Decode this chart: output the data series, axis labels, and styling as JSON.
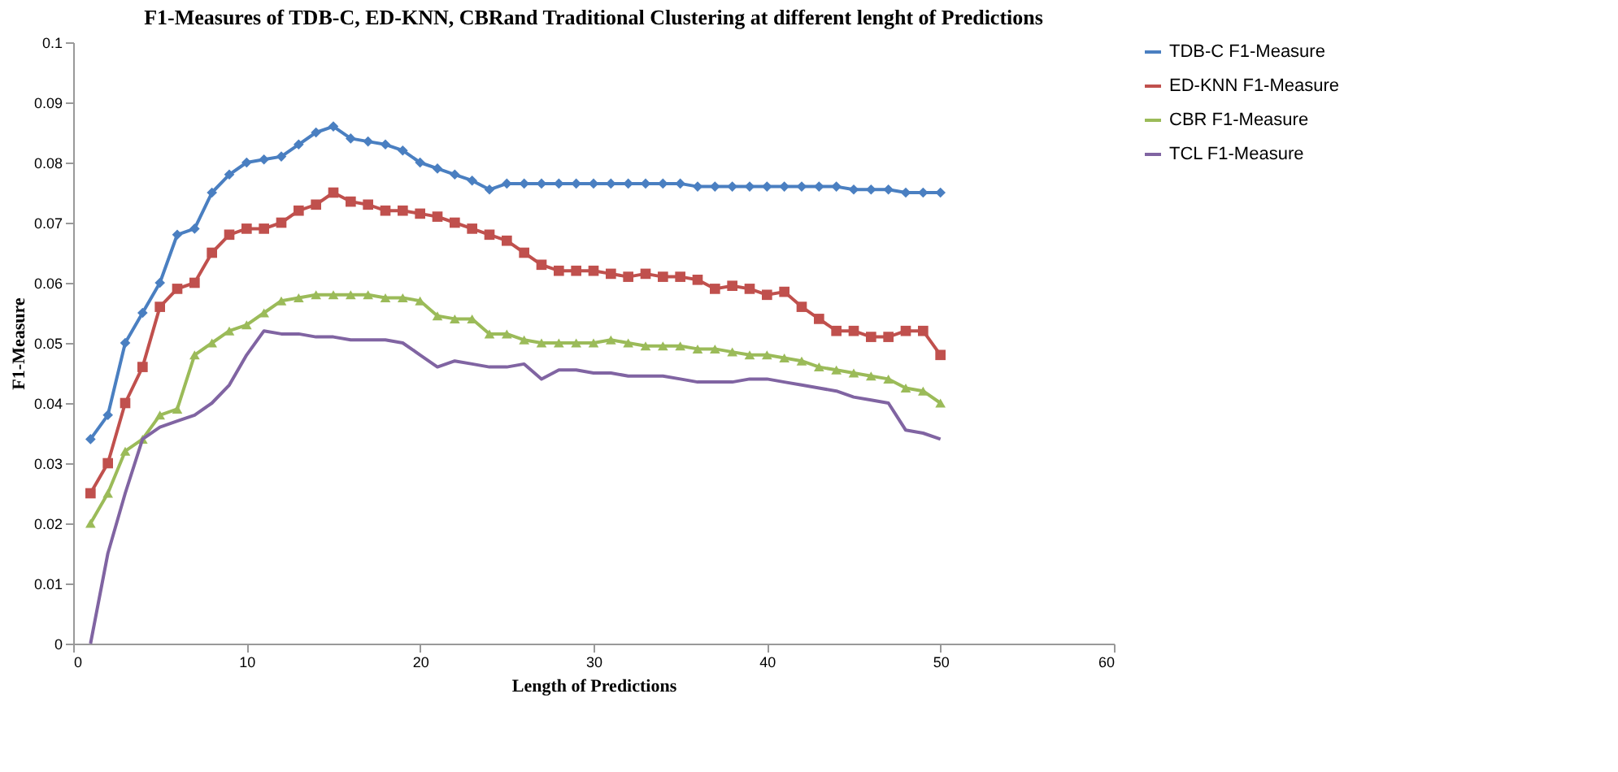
{
  "chart_data": {
    "type": "line",
    "title": "F1-Measures of TDB-C, ED-KNN, CBRand Traditional Clustering at different lenght of Predictions",
    "xlabel": "Length of Predictions",
    "ylabel": "F1-Measure",
    "x": [
      1,
      2,
      3,
      4,
      5,
      6,
      7,
      8,
      9,
      10,
      11,
      12,
      13,
      14,
      15,
      16,
      17,
      18,
      19,
      20,
      21,
      22,
      23,
      24,
      25,
      26,
      27,
      28,
      29,
      30,
      31,
      32,
      33,
      34,
      35,
      36,
      37,
      38,
      39,
      40,
      41,
      42,
      43,
      44,
      45,
      46,
      47,
      48,
      49,
      50
    ],
    "series": [
      {
        "name": "TDB-C F1-Measure",
        "color": "#4a7fc1",
        "marker": "diamond",
        "values": [
          0.034,
          0.038,
          0.05,
          0.055,
          0.06,
          0.068,
          0.069,
          0.075,
          0.078,
          0.08,
          0.0805,
          0.081,
          0.083,
          0.085,
          0.086,
          0.084,
          0.0835,
          0.083,
          0.082,
          0.08,
          0.079,
          0.078,
          0.077,
          0.0755,
          0.0765,
          0.0765,
          0.0765,
          0.0765,
          0.0765,
          0.0765,
          0.0765,
          0.0765,
          0.0765,
          0.0765,
          0.0765,
          0.076,
          0.076,
          0.076,
          0.076,
          0.076,
          0.076,
          0.076,
          0.076,
          0.076,
          0.0755,
          0.0755,
          0.0755,
          0.075,
          0.075,
          0.075
        ]
      },
      {
        "name": "ED-KNN F1-Measure",
        "color": "#c0504d",
        "marker": "square",
        "values": [
          0.025,
          0.03,
          0.04,
          0.046,
          0.056,
          0.059,
          0.06,
          0.065,
          0.068,
          0.069,
          0.069,
          0.07,
          0.072,
          0.073,
          0.075,
          0.0735,
          0.073,
          0.072,
          0.072,
          0.0715,
          0.071,
          0.07,
          0.069,
          0.068,
          0.067,
          0.065,
          0.063,
          0.062,
          0.062,
          0.062,
          0.0615,
          0.061,
          0.0615,
          0.061,
          0.061,
          0.0605,
          0.059,
          0.0595,
          0.059,
          0.058,
          0.0585,
          0.056,
          0.054,
          0.052,
          0.052,
          0.051,
          0.051,
          0.052,
          0.052,
          0.048
        ]
      },
      {
        "name": "CBR F1-Measure",
        "color": "#9bbb59",
        "marker": "triangle",
        "values": [
          0.02,
          0.025,
          0.032,
          0.034,
          0.038,
          0.039,
          0.048,
          0.05,
          0.052,
          0.053,
          0.055,
          0.057,
          0.0575,
          0.058,
          0.058,
          0.058,
          0.058,
          0.0575,
          0.0575,
          0.057,
          0.0545,
          0.054,
          0.054,
          0.0515,
          0.0515,
          0.0505,
          0.05,
          0.05,
          0.05,
          0.05,
          0.0505,
          0.05,
          0.0495,
          0.0495,
          0.0495,
          0.049,
          0.049,
          0.0485,
          0.048,
          0.048,
          0.0475,
          0.047,
          0.046,
          0.0455,
          0.045,
          0.0445,
          0.044,
          0.0425,
          0.042,
          0.04
        ]
      },
      {
        "name": "TCL F1-Measure",
        "color": "#8064a2",
        "marker": "none",
        "values": [
          0.0,
          0.015,
          0.025,
          0.034,
          0.036,
          0.037,
          0.038,
          0.04,
          0.043,
          0.048,
          0.052,
          0.0515,
          0.0515,
          0.051,
          0.051,
          0.0505,
          0.0505,
          0.0505,
          0.05,
          0.048,
          0.046,
          0.047,
          0.0465,
          0.046,
          0.046,
          0.0465,
          0.044,
          0.0455,
          0.0455,
          0.045,
          0.045,
          0.0445,
          0.0445,
          0.0445,
          0.044,
          0.0435,
          0.0435,
          0.0435,
          0.044,
          0.044,
          0.0435,
          0.043,
          0.0425,
          0.042,
          0.041,
          0.0405,
          0.04,
          0.0355,
          0.035,
          0.034
        ]
      }
    ],
    "xlim": [
      0,
      60
    ],
    "xticks": [
      0,
      10,
      20,
      30,
      40,
      50,
      60
    ],
    "ylim": [
      0,
      0.1
    ],
    "yticks": [
      0,
      0.01,
      0.02,
      0.03,
      0.04,
      0.05,
      0.06,
      0.07,
      0.08,
      0.09,
      0.1
    ],
    "grid": false,
    "legend": "right",
    "line_style": "solid"
  }
}
